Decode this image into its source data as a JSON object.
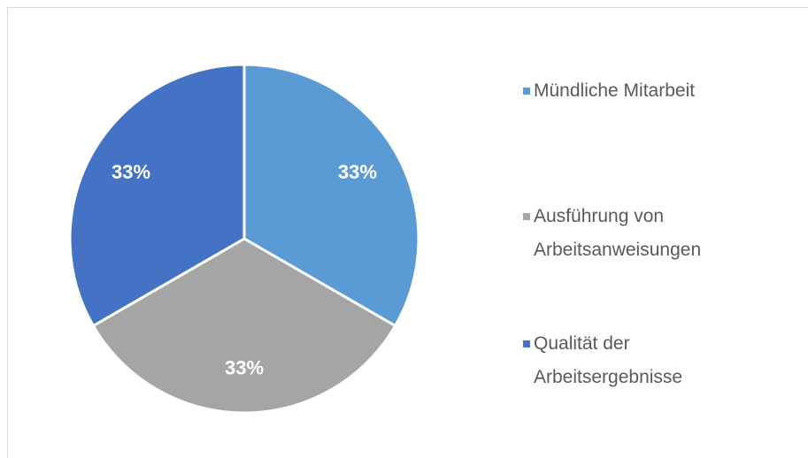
{
  "chart_data": {
    "type": "pie",
    "categories": [
      "Mündliche Mitarbeit",
      "Ausführung von Arbeitsanweisungen",
      "Qualität der Arbeitsergebnisse"
    ],
    "values": [
      33,
      33,
      33
    ],
    "value_labels": [
      "33%",
      "33%",
      "33%"
    ],
    "colors": [
      "#5b9bd5",
      "#a5a5a5",
      "#4472c4"
    ],
    "legend": "right"
  }
}
